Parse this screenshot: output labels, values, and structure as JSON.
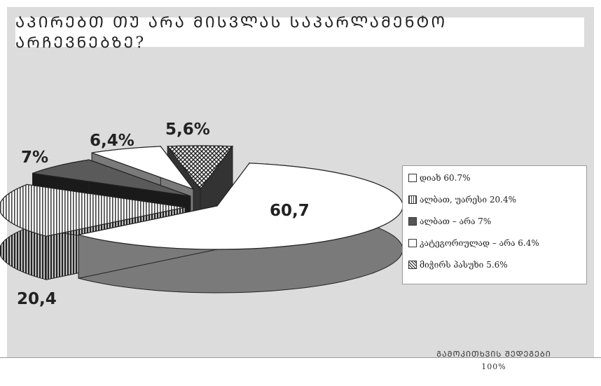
{
  "title": "ᲐᲞᲘᲠᲔᲑᲗ ᲗᲣ ᲐᲠᲐ ᲛᲘᲡᲕᲚᲐᲡ ᲡᲐᲞᲐᲠᲚᲐᲛᲔᲜᲢᲝ ᲐᲠᲩᲔᲕᲜᲔᲑᲖᲔ?",
  "chart_data": {
    "type": "pie",
    "title": "ᲐᲞᲘᲠᲔᲑᲗ ᲗᲣ ᲐᲠᲐ ᲛᲘᲡᲕᲚᲐᲡ ᲡᲐᲞᲐᲠᲚᲐᲛᲔᲜᲢᲝ ᲐᲠᲩᲔᲕᲜᲔᲑᲖᲔ?",
    "legend_position": "right",
    "slices": [
      {
        "label": "დიახ 60.7%",
        "value": 60.7,
        "data_label": "60,7",
        "pattern": "white"
      },
      {
        "label": "ალბათ, უარესი 20.4%",
        "value": 20.4,
        "data_label": "20,4",
        "pattern": "vertical-stripes"
      },
      {
        "label": "ალბათ – არა 7%",
        "value": 7,
        "data_label": "7%",
        "pattern": "dark-gray"
      },
      {
        "label": "კატეგორიულად – არა 6.4%",
        "value": 6.4,
        "data_label": "6,4%",
        "pattern": "white"
      },
      {
        "label": "მიჭირს პასუხი 5.6%",
        "value": 5.6,
        "data_label": "5,6%",
        "pattern": "checker"
      }
    ]
  },
  "footnote": {
    "line1": "ᲒᲐᲛᲝᲙᲘᲗᲮᲕᲘᲡ ᲨᲔᲓᲔᲒᲔᲑᲘ",
    "line2": "100%"
  },
  "colors": {
    "panel": "#dcdcdc",
    "dark_slice": "#5a5a5a",
    "side_gray": "#7a7a7a"
  }
}
